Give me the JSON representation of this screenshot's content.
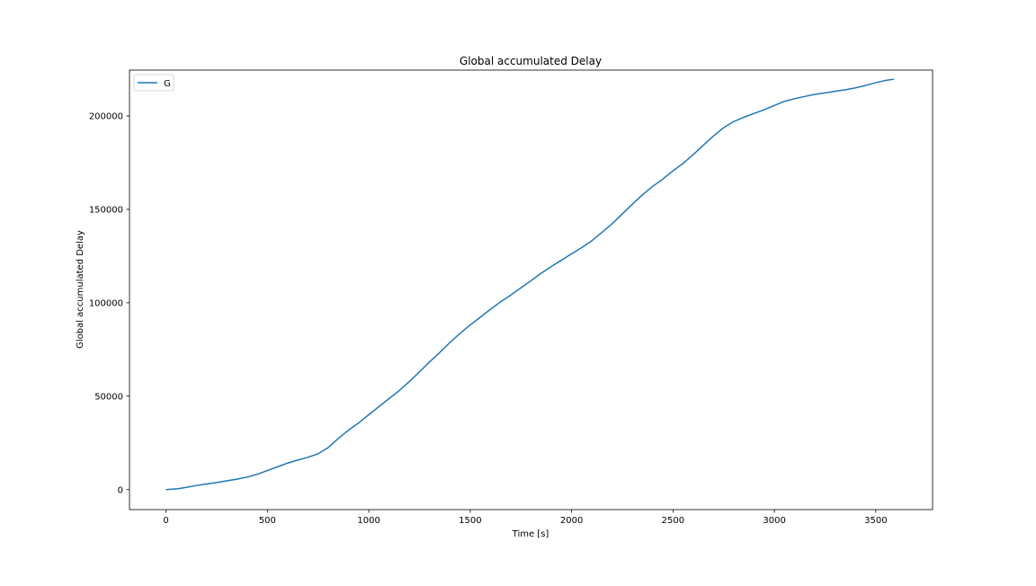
{
  "chart_data": {
    "type": "line",
    "title": "Global accumulated Delay",
    "xlabel": "Time [s]",
    "ylabel": "Global accumulated Delay",
    "xlim": [
      -180,
      3780
    ],
    "ylim": [
      -10700,
      224500
    ],
    "x_ticks": [
      0,
      500,
      1000,
      1500,
      2000,
      2500,
      3000,
      3500
    ],
    "x_tick_labels": [
      "0",
      "500",
      "1000",
      "1500",
      "2000",
      "2500",
      "3000",
      "3500"
    ],
    "y_ticks": [
      0,
      50000,
      100000,
      150000,
      200000
    ],
    "y_tick_labels": [
      "0",
      "50000",
      "100000",
      "150000",
      "200000"
    ],
    "grid": false,
    "legend": {
      "position": "top-left",
      "entries": [
        "G"
      ]
    },
    "colors": {
      "series": "#1f77b4",
      "axes": "#000000",
      "background": "#ffffff"
    },
    "series": [
      {
        "name": "G",
        "x": [
          0,
          60,
          100,
          150,
          200,
          250,
          300,
          350,
          400,
          450,
          500,
          550,
          600,
          650,
          700,
          750,
          800,
          850,
          900,
          950,
          1000,
          1050,
          1100,
          1150,
          1200,
          1250,
          1300,
          1350,
          1400,
          1450,
          1500,
          1550,
          1600,
          1650,
          1700,
          1750,
          1800,
          1850,
          1900,
          1950,
          2000,
          2050,
          2100,
          2150,
          2200,
          2250,
          2300,
          2350,
          2400,
          2450,
          2500,
          2550,
          2600,
          2650,
          2700,
          2750,
          2800,
          2850,
          2900,
          2950,
          3000,
          3050,
          3100,
          3150,
          3200,
          3250,
          3300,
          3350,
          3400,
          3450,
          3500,
          3550,
          3590
        ],
        "y": [
          0,
          500,
          1200,
          2200,
          3000,
          3800,
          4700,
          5600,
          6700,
          8200,
          10200,
          12200,
          14200,
          15800,
          17300,
          19200,
          22500,
          27400,
          31800,
          35700,
          40100,
          44400,
          48700,
          53000,
          57800,
          63000,
          68400,
          73400,
          78700,
          83600,
          88100,
          92300,
          96500,
          100500,
          104100,
          108000,
          111800,
          115800,
          119400,
          122800,
          126200,
          129500,
          133200,
          137700,
          142300,
          147500,
          152800,
          157800,
          162300,
          166200,
          170600,
          174600,
          179300,
          184300,
          189300,
          193700,
          197000,
          199300,
          201300,
          203300,
          205600,
          207800,
          209200,
          210400,
          211500,
          212300,
          213200,
          214000,
          215000,
          216300,
          217800,
          219000,
          219600
        ]
      }
    ]
  }
}
